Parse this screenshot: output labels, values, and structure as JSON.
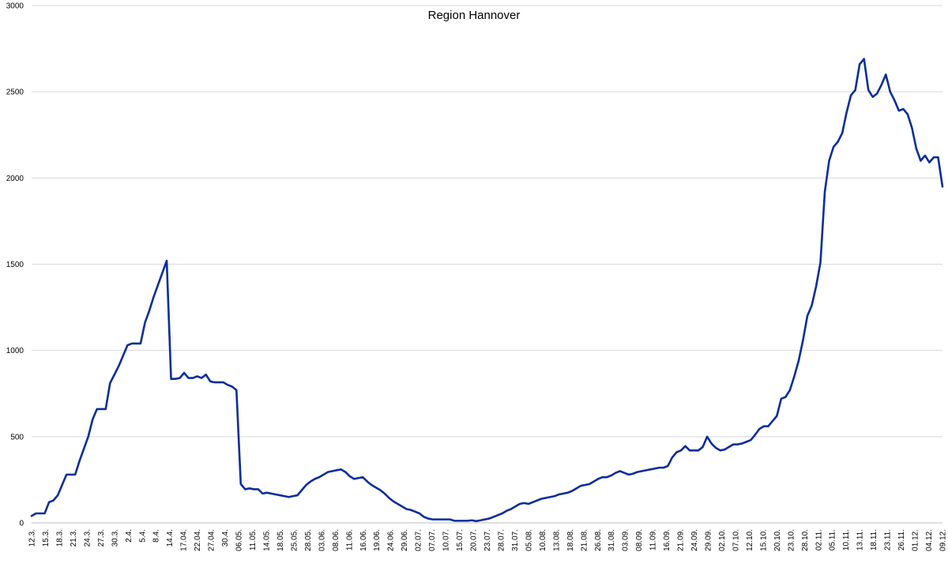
{
  "chart_data": {
    "type": "line",
    "title": "Region Hannover",
    "xlabel": "",
    "ylabel": "",
    "ylim": [
      0,
      3000
    ],
    "yticks": [
      0,
      500,
      1000,
      1500,
      2000,
      2500,
      3000
    ],
    "grid": true,
    "legend": "none",
    "series_color": "#0a2d9c",
    "x_tick_labels": [
      "12.3.",
      "15.3.",
      "18.3.",
      "21.3.",
      "24.3.",
      "27.3.",
      "30.3.",
      "2.4.",
      "5.4.",
      "8.4.",
      "14.4.",
      "17.04.",
      "22.04.",
      "27.04.",
      "30.4.",
      "06.05.",
      "11.05.",
      "14.05.",
      "18.05.",
      "25.05.",
      "28.05.",
      "03.06.",
      "08.06.",
      "11.06.",
      "16.06.",
      "19.06.",
      "24.06.",
      "29.06.",
      "02.07.",
      "07.07.",
      "10.07.",
      "15.07.",
      "20.07.",
      "23.07.",
      "28.07.",
      "31.07.",
      "05.08.",
      "10.08.",
      "13.08.",
      "18.08.",
      "21.08.",
      "26.08.",
      "31.08.",
      "03.09.",
      "08.09.",
      "11.09.",
      "16.09.",
      "21.09.",
      "24.09.",
      "29.09.",
      "02.10.",
      "07.10.",
      "12.10.",
      "15.10.",
      "20.10.",
      "23.10.",
      "28.10.",
      "02.11.",
      "05.11.",
      "10.11.",
      "13.11.",
      "18.11.",
      "23.11.",
      "26.11.",
      "01.12.",
      "04.12.",
      "09.12."
    ],
    "series": [
      {
        "values": [
          40,
          55,
          55,
          55,
          120,
          130,
          160,
          220,
          280,
          280,
          280,
          360,
          430,
          500,
          600,
          660,
          660,
          660,
          810,
          860,
          910,
          970,
          1030,
          1040,
          1040,
          1040,
          1160,
          1230,
          1310,
          1380,
          1450,
          1520,
          835,
          835,
          840,
          870,
          840,
          840,
          850,
          840,
          860,
          820,
          815,
          815,
          815,
          800,
          790,
          770,
          225,
          195,
          200,
          195,
          195,
          170,
          175,
          170,
          165,
          160,
          155,
          150,
          155,
          160,
          190,
          220,
          240,
          255,
          265,
          280,
          295,
          300,
          305,
          310,
          295,
          270,
          255,
          260,
          265,
          240,
          220,
          205,
          190,
          170,
          145,
          125,
          110,
          95,
          80,
          75,
          65,
          55,
          35,
          25,
          20,
          20,
          20,
          20,
          20,
          12,
          12,
          12,
          12,
          15,
          10,
          15,
          20,
          25,
          35,
          45,
          55,
          70,
          80,
          95,
          110,
          115,
          110,
          120,
          130,
          140,
          145,
          150,
          155,
          165,
          170,
          175,
          185,
          200,
          215,
          220,
          225,
          240,
          255,
          265,
          265,
          275,
          290,
          300,
          290,
          280,
          285,
          295,
          300,
          305,
          310,
          315,
          320,
          320,
          330,
          380,
          410,
          420,
          445,
          420,
          420,
          420,
          440,
          500,
          460,
          435,
          420,
          425,
          440,
          455,
          455,
          460,
          470,
          480,
          510,
          545,
          560,
          560,
          590,
          620,
          720,
          730,
          770,
          850,
          940,
          1060,
          1200,
          1260,
          1370,
          1510,
          1920,
          2100,
          2180,
          2210,
          2260,
          2380,
          2480,
          2510,
          2660,
          2690,
          2510,
          2470,
          2490,
          2540,
          2600,
          2500,
          2450,
          2390,
          2400,
          2370,
          2290,
          2170,
          2100,
          2130,
          2090,
          2120,
          2120,
          1950
        ]
      }
    ]
  }
}
